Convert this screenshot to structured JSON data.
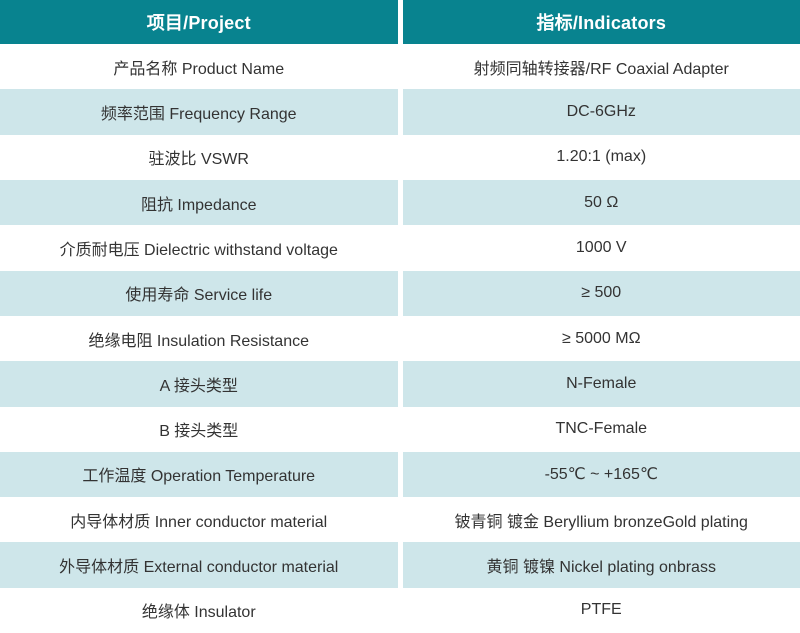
{
  "table": {
    "header": {
      "project": "项目/Project",
      "indicators": "指标/Indicators"
    },
    "rows": [
      {
        "project": "产品名称 Product Name",
        "indicator": "射频同轴转接器/RF Coaxial Adapter"
      },
      {
        "project": "频率范围 Frequency Range",
        "indicator": "DC-6GHz"
      },
      {
        "project": "驻波比 VSWR",
        "indicator": "1.20:1 (max)"
      },
      {
        "project": "阻抗 Impedance",
        "indicator": "50 Ω"
      },
      {
        "project": "介质耐电压 Dielectric withstand voltage",
        "indicator": "1000 V"
      },
      {
        "project": "使用寿命 Service life",
        "indicator": "≥ 500"
      },
      {
        "project": "绝缘电阻 Insulation Resistance",
        "indicator": "≥ 5000 MΩ"
      },
      {
        "project": "A 接头类型",
        "indicator": "N-Female"
      },
      {
        "project": "B 接头类型",
        "indicator": "TNC-Female"
      },
      {
        "project": "工作温度 Operation Temperature",
        "indicator": "-55℃ ~ +165℃"
      },
      {
        "project": "内导体材质 Inner conductor material",
        "indicator": "铍青铜 镀金 Beryllium bronzeGold plating"
      },
      {
        "project": "外导体材质 External conductor material",
        "indicator": "黄铜 镀镍 Nickel plating onbrass"
      },
      {
        "project": "绝缘体 Insulator",
        "indicator": "PTFE"
      }
    ],
    "colors": {
      "header_bg": "#08838F",
      "header_text": "#FFFFFF",
      "row_bg": "#FFFFFF",
      "row_alt_bg": "#CEE6EA",
      "body_text": "#333333"
    }
  }
}
